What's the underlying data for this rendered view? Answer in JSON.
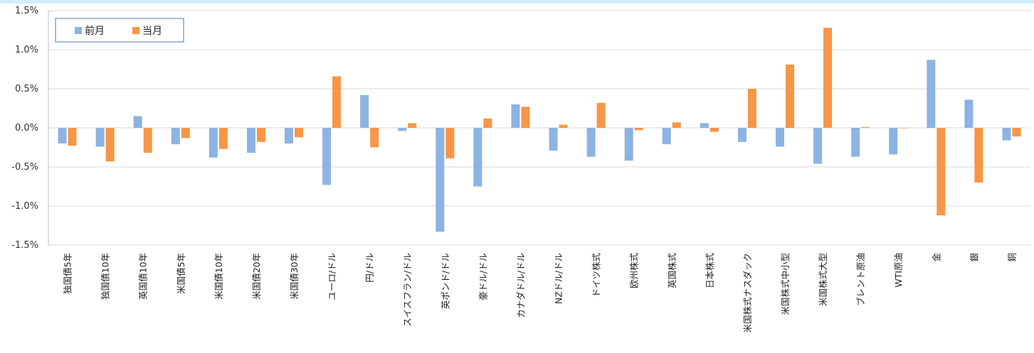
{
  "chart_data": {
    "type": "bar",
    "ylim": [
      -1.5,
      1.5
    ],
    "yticks": [
      "1.5%",
      "1.0%",
      "0.5%",
      "0.0%",
      "-0.5%",
      "-1.0%",
      "-1.5%"
    ],
    "ytick_values": [
      1.5,
      1.0,
      0.5,
      0.0,
      -0.5,
      -1.0,
      -1.5
    ],
    "grid": true,
    "legend_position": "top-left",
    "categories": [
      "独国債5年",
      "独国債10年",
      "英国債10年",
      "米国債5年",
      "米国債10年",
      "米国債20年",
      "米国債30年",
      "ユーロ/ドル",
      "円/ドル",
      "スイスフラン/ドル",
      "英ポンド/ドル",
      "豪ドル/ドル",
      "カナダドル/ドル",
      "NZドル/ドル",
      "ドイツ株式",
      "欧州株式",
      "英国株式",
      "日本株式",
      "米国株式ナスダック",
      "米国株式中小型",
      "米国株式大型",
      "ブレント原油",
      "WTI原油",
      "金",
      "銀",
      "銅"
    ],
    "series": [
      {
        "name": "前月",
        "color": "#8db3e2",
        "values": [
          -0.2,
          -0.24,
          0.15,
          -0.21,
          -0.38,
          -0.32,
          -0.2,
          -0.73,
          0.42,
          -0.04,
          -1.33,
          -0.75,
          0.3,
          -0.29,
          -0.37,
          -0.42,
          -0.21,
          0.06,
          -0.18,
          -0.24,
          -0.46,
          -0.37,
          -0.34,
          0.87,
          0.36,
          -0.16
        ]
      },
      {
        "name": "当月",
        "color": "#f79646",
        "values": [
          -0.23,
          -0.43,
          -0.32,
          -0.13,
          -0.27,
          -0.18,
          -0.12,
          0.66,
          -0.25,
          0.06,
          -0.39,
          0.12,
          0.27,
          0.04,
          0.32,
          -0.03,
          0.07,
          -0.05,
          0.5,
          0.81,
          1.28,
          0.01,
          0.0,
          -1.12,
          -0.7,
          -0.11
        ]
      }
    ]
  }
}
